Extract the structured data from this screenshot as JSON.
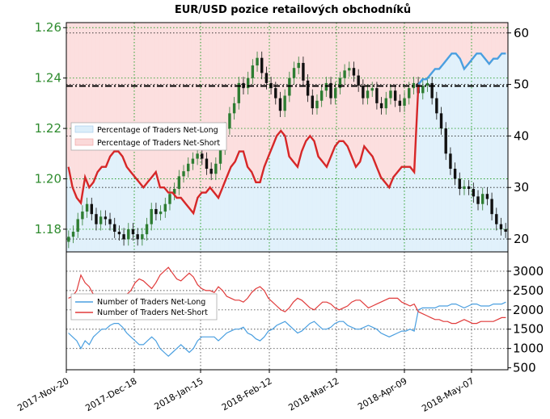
{
  "title": "EUR/USD pozice retailových obchodníků",
  "colors": {
    "net_long_fill": "#dceefa",
    "net_short_fill": "#fbd9d9",
    "net_long_line": "#4a9fe0",
    "net_short_line": "#e03a3a",
    "positions_line": "#d62728",
    "price_up": "#2e7d32",
    "price_down": "#111111",
    "grid_green": "#2ca02c",
    "left_axis": "#2e8b2e"
  },
  "chart_data": [
    {
      "type": "line",
      "name": "top-panel",
      "x_tick_labels": [
        "2017-Nov-20",
        "2017-Dec-18",
        "2018-Jan-15",
        "2018-Feb-12",
        "2018-Mar-12",
        "2018-Apr-09",
        "2018-May-07"
      ],
      "left_axis": {
        "ticks": [
          "1.26",
          "1.24",
          "1.22",
          "1.20",
          "1.18"
        ],
        "ylim": [
          1.171,
          1.262
        ]
      },
      "right_axis": {
        "ticks": [
          "60",
          "50",
          "40",
          "30",
          "20"
        ],
        "ylim": [
          17.5,
          62.0
        ]
      },
      "reference_line": {
        "value": 49.7,
        "axis": "right"
      },
      "legend": [
        "Percentage of Traders Net-Long",
        "Percentage of Traders Net-Short"
      ],
      "price_close": [
        1.177,
        1.179,
        1.184,
        1.187,
        1.19,
        1.186,
        1.182,
        1.185,
        1.184,
        1.182,
        1.179,
        1.178,
        1.176,
        1.18,
        1.178,
        1.176,
        1.178,
        1.182,
        1.188,
        1.186,
        1.187,
        1.19,
        1.194,
        1.196,
        1.201,
        1.203,
        1.206,
        1.208,
        1.21,
        1.208,
        1.204,
        1.202,
        1.206,
        1.212,
        1.22,
        1.226,
        1.23,
        1.238,
        1.236,
        1.24,
        1.245,
        1.248,
        1.242,
        1.238,
        1.236,
        1.232,
        1.227,
        1.233,
        1.24,
        1.244,
        1.246,
        1.239,
        1.233,
        1.228,
        1.231,
        1.235,
        1.238,
        1.232,
        1.236,
        1.24,
        1.243,
        1.244,
        1.241,
        1.237,
        1.232,
        1.235,
        1.236,
        1.23,
        1.228,
        1.232,
        1.235,
        1.231,
        1.229,
        1.232,
        1.236,
        1.238,
        1.234,
        1.237,
        1.238,
        1.232,
        1.226,
        1.22,
        1.21,
        1.204,
        1.2,
        1.196,
        1.197,
        1.196,
        1.193,
        1.19,
        1.194,
        1.192,
        1.186,
        1.182,
        1.18,
        1.179
      ],
      "pct_net_long": [
        34,
        30,
        28,
        27,
        32,
        30,
        31,
        33,
        34,
        34,
        36,
        37,
        37,
        36,
        34,
        33,
        32,
        31,
        30,
        31,
        32,
        33,
        30,
        30,
        29,
        29,
        28,
        28,
        27,
        26,
        25,
        28,
        29,
        29,
        30,
        29,
        28,
        30,
        32,
        34,
        35,
        37,
        37,
        34,
        33,
        31,
        31,
        34,
        36,
        38,
        40,
        41,
        40,
        36,
        35,
        34,
        37,
        39,
        40,
        39,
        36,
        35,
        34,
        36,
        38,
        39,
        39,
        38,
        36,
        34,
        35,
        38,
        37,
        36,
        34,
        32,
        31,
        30,
        32,
        33,
        34,
        34,
        34,
        33,
        50,
        51,
        51,
        52,
        53,
        53,
        54,
        55,
        56,
        56,
        55,
        53,
        54,
        55,
        56,
        56,
        55,
        54,
        55,
        55,
        56,
        56
      ],
      "net_long_series": [
        1400,
        1300,
        1200,
        1000,
        1200,
        1100,
        1300,
        1400,
        1500,
        1500,
        1600,
        1650,
        1650,
        1550,
        1400,
        1300,
        1200,
        1100,
        1100,
        1200,
        1300,
        1200,
        1000,
        900,
        800,
        900,
        1000,
        1100,
        1000,
        900,
        1000,
        1200,
        1300,
        1300,
        1300,
        1300,
        1200,
        1300,
        1400,
        1450,
        1500,
        1500,
        1550,
        1400,
        1350,
        1250,
        1200,
        1300,
        1450,
        1500,
        1600,
        1650,
        1700,
        1600,
        1500,
        1400,
        1450,
        1550,
        1650,
        1700,
        1600,
        1500,
        1500,
        1550,
        1650,
        1700,
        1700,
        1600,
        1550,
        1500,
        1500,
        1550,
        1600,
        1550,
        1500,
        1400,
        1350,
        1300,
        1350,
        1400,
        1450,
        1450,
        1500,
        1450,
        2000,
        2050,
        2050,
        2050,
        2050,
        2100,
        2100,
        2100,
        2150,
        2150,
        2100,
        2050,
        2100,
        2150,
        2150,
        2100,
        2100,
        2100,
        2150,
        2150,
        2150,
        2200
      ],
      "net_short_series": [
        2300,
        2350,
        2500,
        2900,
        2700,
        2600,
        2400,
        2300,
        2300,
        2250,
        2200,
        2200,
        2250,
        2300,
        2400,
        2500,
        2700,
        2800,
        2750,
        2650,
        2550,
        2700,
        2900,
        3000,
        3100,
        2950,
        2800,
        2750,
        2850,
        2950,
        2850,
        2650,
        2550,
        2500,
        2500,
        2450,
        2600,
        2500,
        2350,
        2300,
        2250,
        2250,
        2200,
        2300,
        2450,
        2550,
        2600,
        2500,
        2300,
        2200,
        2100,
        2000,
        1950,
        2050,
        2200,
        2300,
        2250,
        2150,
        2050,
        2000,
        2100,
        2200,
        2200,
        2150,
        2050,
        2000,
        2050,
        2100,
        2200,
        2250,
        2250,
        2150,
        2050,
        2100,
        2150,
        2200,
        2250,
        2300,
        2300,
        2300,
        2200,
        2150,
        2100,
        2150,
        1950,
        1900,
        1850,
        1800,
        1750,
        1750,
        1700,
        1700,
        1650,
        1650,
        1700,
        1750,
        1700,
        1650,
        1650,
        1700,
        1700,
        1700,
        1700,
        1750,
        1800,
        1800
      ]
    },
    {
      "type": "line",
      "name": "bottom-panel",
      "right_axis": {
        "ticks": [
          "3000",
          "2500",
          "2000",
          "1500",
          "1000",
          "500"
        ],
        "ylim": [
          450,
          3500
        ]
      },
      "legend": [
        "Number of Traders Net-Long",
        "Number of Traders Net-Short"
      ]
    }
  ]
}
